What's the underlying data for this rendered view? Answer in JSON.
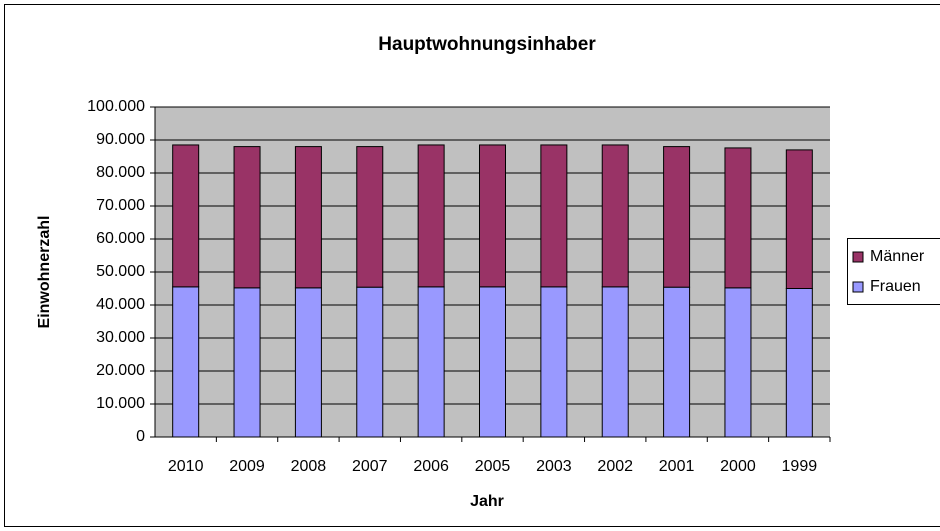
{
  "chart_data": {
    "type": "stacked_bar",
    "title": "Hauptwohnungsinhaber",
    "x_label": "Jahr",
    "y_label": "Einwohnerzahl",
    "categories": [
      "2010",
      "2009",
      "2008",
      "2007",
      "2006",
      "2005",
      "2003",
      "2002",
      "2001",
      "2000",
      "1999"
    ],
    "series": [
      {
        "name": "Frauen",
        "color": "#9999ff",
        "values": [
          45500,
          45200,
          45200,
          45400,
          45500,
          45500,
          45500,
          45500,
          45400,
          45200,
          45000
        ]
      },
      {
        "name": "Männer",
        "color": "#993366",
        "values": [
          43000,
          42800,
          42800,
          42600,
          43000,
          43000,
          43000,
          43000,
          42600,
          42400,
          42000
        ]
      }
    ],
    "ylim": [
      0,
      100000
    ],
    "yticks": [
      0,
      {
        "value": 10000,
        "label": "10.000"
      },
      {
        "value": 20000,
        "label": "20.000"
      },
      {
        "value": 30000,
        "label": "30.000"
      },
      {
        "value": 40000,
        "label": "40.000"
      },
      {
        "value": 50000,
        "label": "50.000"
      },
      {
        "value": 60000,
        "label": "60.000"
      },
      {
        "value": 70000,
        "label": "70.000"
      },
      {
        "value": 80000,
        "label": "80.000"
      },
      {
        "value": 90000,
        "label": "90.000"
      },
      {
        "value": 100000,
        "label": "100.000"
      }
    ],
    "grid": true,
    "legend": "right"
  }
}
